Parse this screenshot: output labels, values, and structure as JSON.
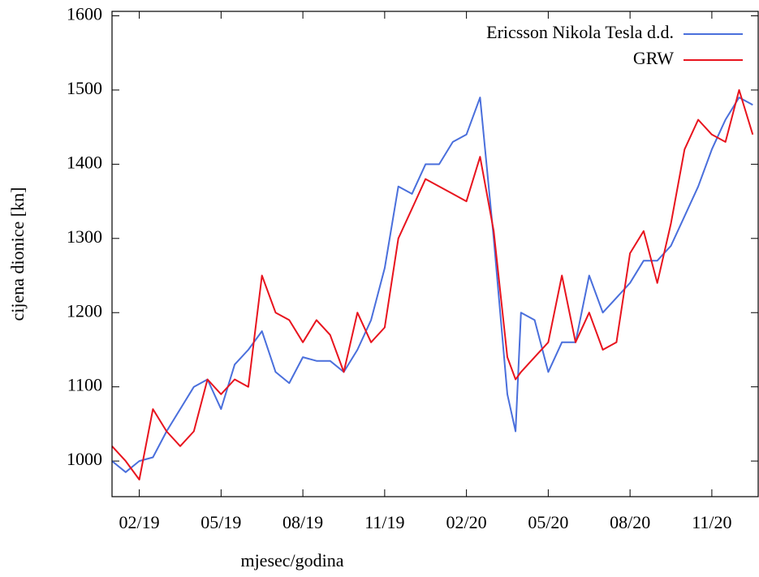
{
  "chart_data": {
    "type": "line",
    "xlabel": "mjesec/godina",
    "ylabel": "cijena dionice [kn]",
    "x": [
      0,
      0.5,
      1,
      1.5,
      2,
      2.5,
      3,
      3.5,
      4,
      4.5,
      5,
      5.5,
      6,
      6.5,
      7,
      7.5,
      8,
      8.5,
      9,
      9.5,
      10,
      10.5,
      11,
      11.5,
      12,
      12.5,
      13,
      13.5,
      14,
      14.5,
      14.8,
      15,
      15.5,
      16,
      16.5,
      17,
      17.5,
      18,
      18.5,
      19,
      19.5,
      20,
      20.5,
      21,
      21.5,
      22,
      22.5,
      23,
      23.5
    ],
    "series": [
      {
        "name": "Ericsson Nikola Tesla d.d.",
        "color": "#4a6fdc",
        "values": [
          1000,
          985,
          1000,
          1005,
          1040,
          1070,
          1100,
          1110,
          1070,
          1130,
          1150,
          1175,
          1120,
          1105,
          1140,
          1135,
          1135,
          1120,
          1150,
          1190,
          1260,
          1370,
          1360,
          1400,
          1400,
          1430,
          1440,
          1490,
          1300,
          1090,
          1040,
          1200,
          1190,
          1120,
          1160,
          1160,
          1250,
          1200,
          1220,
          1240,
          1270,
          1270,
          1290,
          1330,
          1370,
          1420,
          1460,
          1490,
          1480
        ]
      },
      {
        "name": "GRW",
        "color": "#e8141e",
        "values": [
          1020,
          1000,
          975,
          1070,
          1040,
          1020,
          1040,
          1110,
          1090,
          1110,
          1100,
          1250,
          1200,
          1190,
          1160,
          1190,
          1170,
          1120,
          1200,
          1160,
          1180,
          1300,
          1340,
          1380,
          1370,
          1360,
          1350,
          1410,
          1310,
          1140,
          1110,
          1120,
          1140,
          1160,
          1250,
          1160,
          1200,
          1150,
          1160,
          1280,
          1310,
          1240,
          1320,
          1420,
          1460,
          1440,
          1430,
          1500,
          1440
        ]
      }
    ],
    "xlim": [
      0,
      23.7
    ],
    "xticks": [
      {
        "value": 1,
        "label": "02/19"
      },
      {
        "value": 4,
        "label": "05/19"
      },
      {
        "value": 7,
        "label": "08/19"
      },
      {
        "value": 10,
        "label": "11/19"
      },
      {
        "value": 13,
        "label": "02/20"
      },
      {
        "value": 16,
        "label": "05/20"
      },
      {
        "value": 19,
        "label": "08/20"
      },
      {
        "value": 22,
        "label": "11/20"
      }
    ],
    "ylim": [
      952,
      1606
    ],
    "yticks": [
      1000,
      1100,
      1200,
      1300,
      1400,
      1500,
      1600
    ],
    "grid": false,
    "legend": "upper right"
  }
}
